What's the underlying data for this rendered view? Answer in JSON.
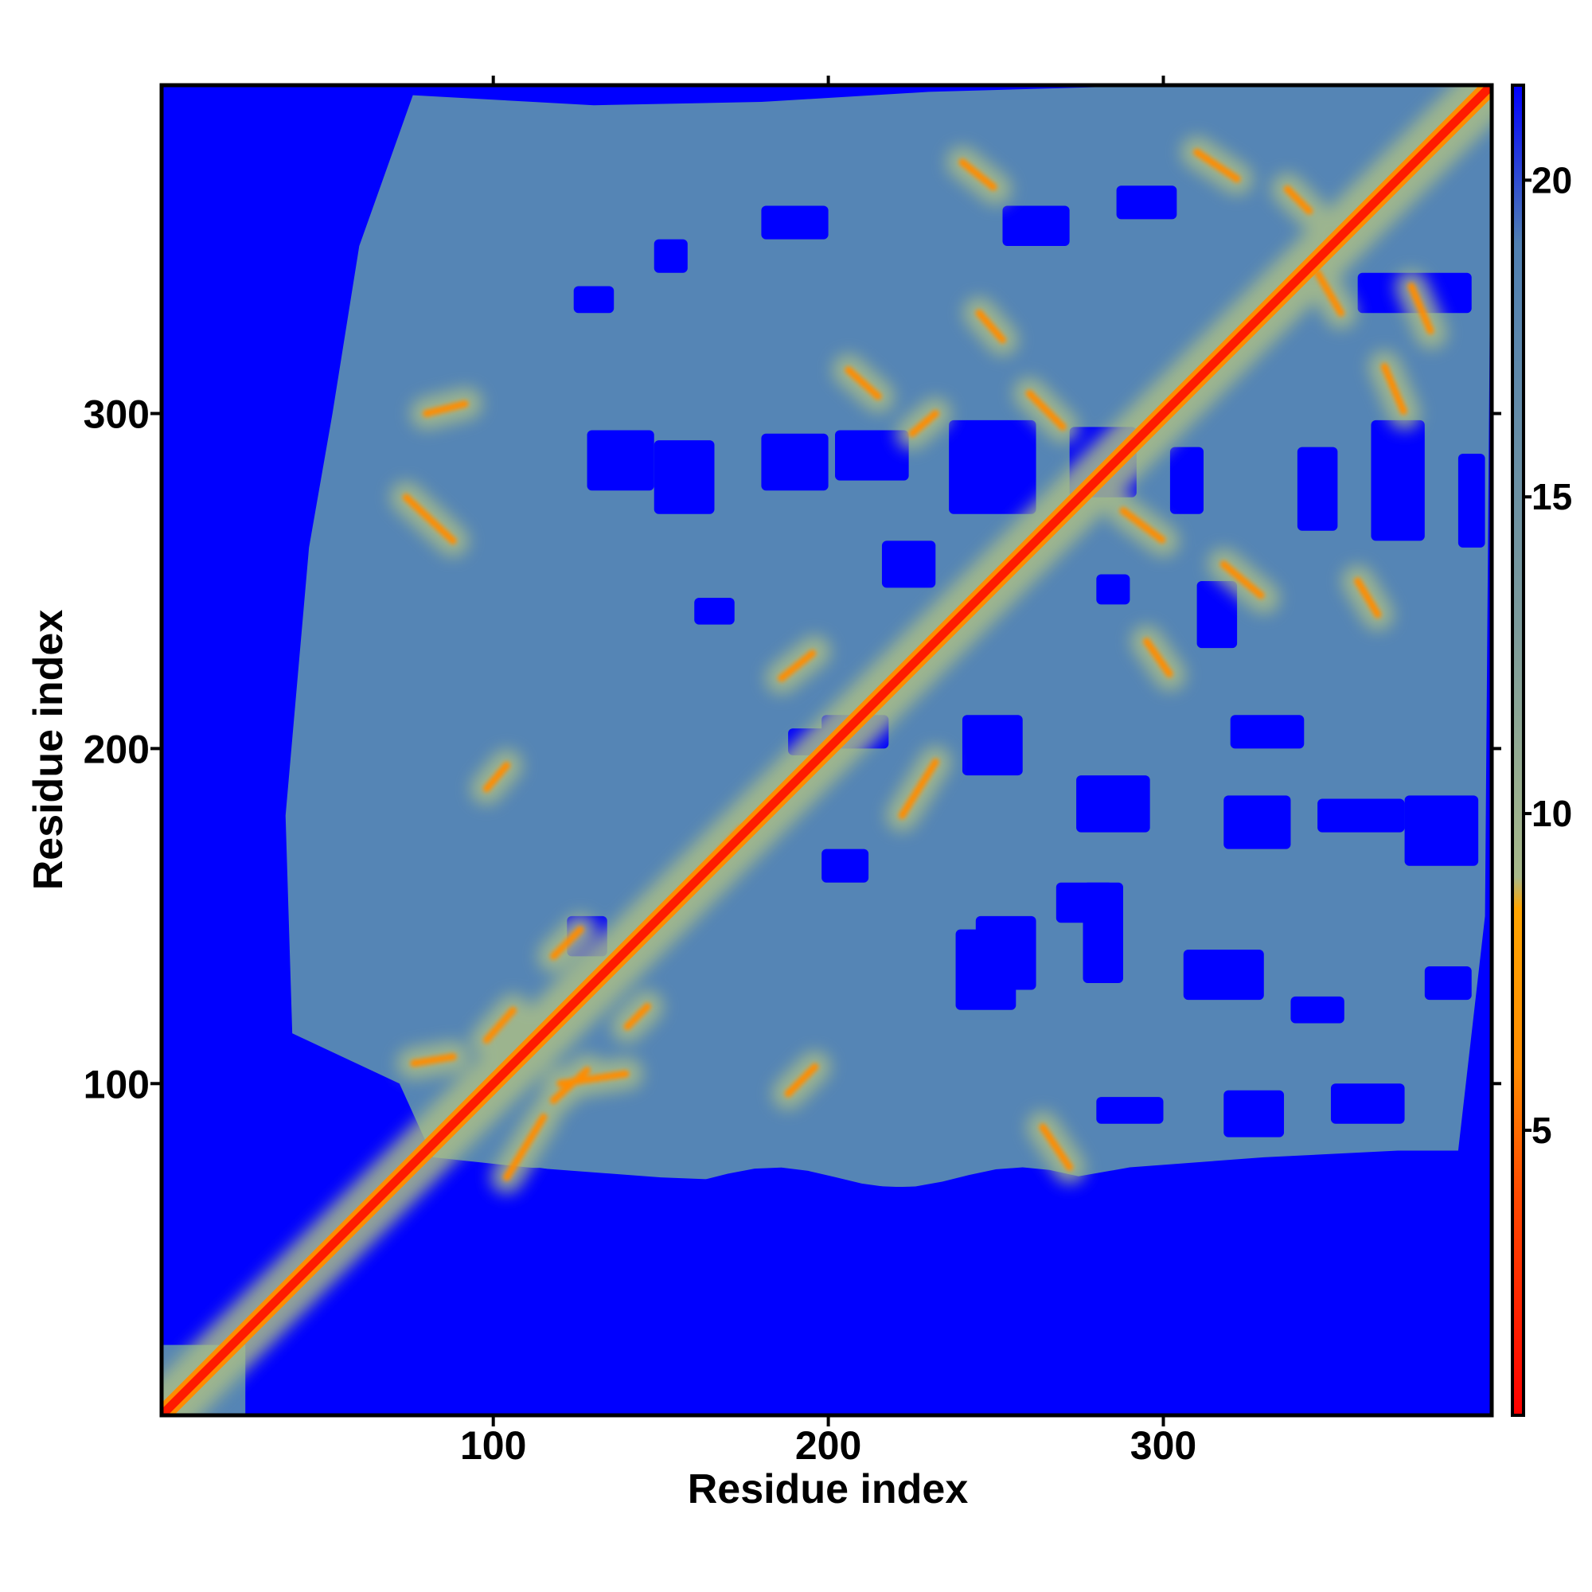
{
  "chart_data": {
    "type": "heatmap",
    "title": "",
    "xlabel": "Residue index",
    "ylabel": "Residue index",
    "xlim": [
      1,
      398
    ],
    "ylim": [
      1,
      398
    ],
    "x_ticks": [
      100,
      200,
      300
    ],
    "y_ticks": [
      100,
      200,
      300
    ],
    "colorbar": {
      "ticks": [
        5,
        10,
        15,
        20
      ],
      "range": [
        0.5,
        21.5
      ],
      "stops": [
        {
          "value": 0.5,
          "color": "#ff0000"
        },
        {
          "value": 4,
          "color": "#ff4a00"
        },
        {
          "value": 6,
          "color": "#ff8c00"
        },
        {
          "value": 8.5,
          "color": "#ffa500"
        },
        {
          "value": 9,
          "color": "#a8b98a"
        },
        {
          "value": 13,
          "color": "#7b9a9b"
        },
        {
          "value": 19,
          "color": "#4f7fb2"
        },
        {
          "value": 21.5,
          "color": "#0000ff"
        }
      ]
    },
    "colors": {
      "background": "#0000ff",
      "cloud": "#5585b5",
      "medium": "#a9bd88",
      "close": "#ff8c00",
      "diagonal": "#ff1a00"
    },
    "contact_segments": [
      {
        "x0": 74,
        "y0": 275,
        "x1": 88,
        "y1": 262,
        "d": 8
      },
      {
        "x0": 80,
        "y0": 300,
        "x1": 92,
        "y1": 303,
        "d": 7
      },
      {
        "x0": 98,
        "y0": 188,
        "x1": 104,
        "y1": 195,
        "d": 6
      },
      {
        "x0": 88,
        "y0": 108,
        "x1": 76,
        "y1": 106,
        "d": 7
      },
      {
        "x0": 98,
        "y0": 113,
        "x1": 106,
        "y1": 122,
        "d": 7
      },
      {
        "x0": 104,
        "y0": 72,
        "x1": 115,
        "y1": 90,
        "d": 7
      },
      {
        "x0": 118,
        "y0": 138,
        "x1": 126,
        "y1": 146,
        "d": 6
      },
      {
        "x0": 118,
        "y0": 95,
        "x1": 128,
        "y1": 104,
        "d": 7
      },
      {
        "x0": 120,
        "y0": 100,
        "x1": 140,
        "y1": 103,
        "d": 7
      },
      {
        "x0": 140,
        "y0": 117,
        "x1": 146,
        "y1": 123,
        "d": 7
      },
      {
        "x0": 186,
        "y0": 221,
        "x1": 196,
        "y1": 229,
        "d": 6
      },
      {
        "x0": 188,
        "y0": 97,
        "x1": 196,
        "y1": 105,
        "d": 6
      },
      {
        "x0": 206,
        "y0": 313,
        "x1": 215,
        "y1": 305,
        "d": 7
      },
      {
        "x0": 225,
        "y0": 294,
        "x1": 232,
        "y1": 300,
        "d": 6
      },
      {
        "x0": 240,
        "y0": 375,
        "x1": 250,
        "y1": 367,
        "d": 8
      },
      {
        "x0": 245,
        "y0": 330,
        "x1": 252,
        "y1": 322,
        "d": 8
      },
      {
        "x0": 222,
        "y0": 180,
        "x1": 232,
        "y1": 196,
        "d": 7
      },
      {
        "x0": 260,
        "y0": 306,
        "x1": 270,
        "y1": 296,
        "d": 6
      },
      {
        "x0": 264,
        "y0": 87,
        "x1": 272,
        "y1": 75,
        "d": 7
      },
      {
        "x0": 295,
        "y0": 232,
        "x1": 302,
        "y1": 222,
        "d": 7
      },
      {
        "x0": 288,
        "y0": 271,
        "x1": 300,
        "y1": 262,
        "d": 7
      },
      {
        "x0": 318,
        "y0": 255,
        "x1": 330,
        "y1": 245,
        "d": 8
      },
      {
        "x0": 337,
        "y0": 367,
        "x1": 344,
        "y1": 360,
        "d": 7
      },
      {
        "x0": 346,
        "y0": 342,
        "x1": 353,
        "y1": 330,
        "d": 7
      },
      {
        "x0": 358,
        "y0": 250,
        "x1": 364,
        "y1": 240,
        "d": 8
      },
      {
        "x0": 366,
        "y0": 314,
        "x1": 372,
        "y1": 300,
        "d": 8
      },
      {
        "x0": 374,
        "y0": 338,
        "x1": 380,
        "y1": 324,
        "d": 8
      },
      {
        "x0": 310,
        "y0": 378,
        "x1": 322,
        "y1": 370,
        "d": 8
      },
      {
        "x0": 152,
        "y0": 152,
        "x1": 174,
        "y1": 176,
        "d": 5
      }
    ]
  }
}
